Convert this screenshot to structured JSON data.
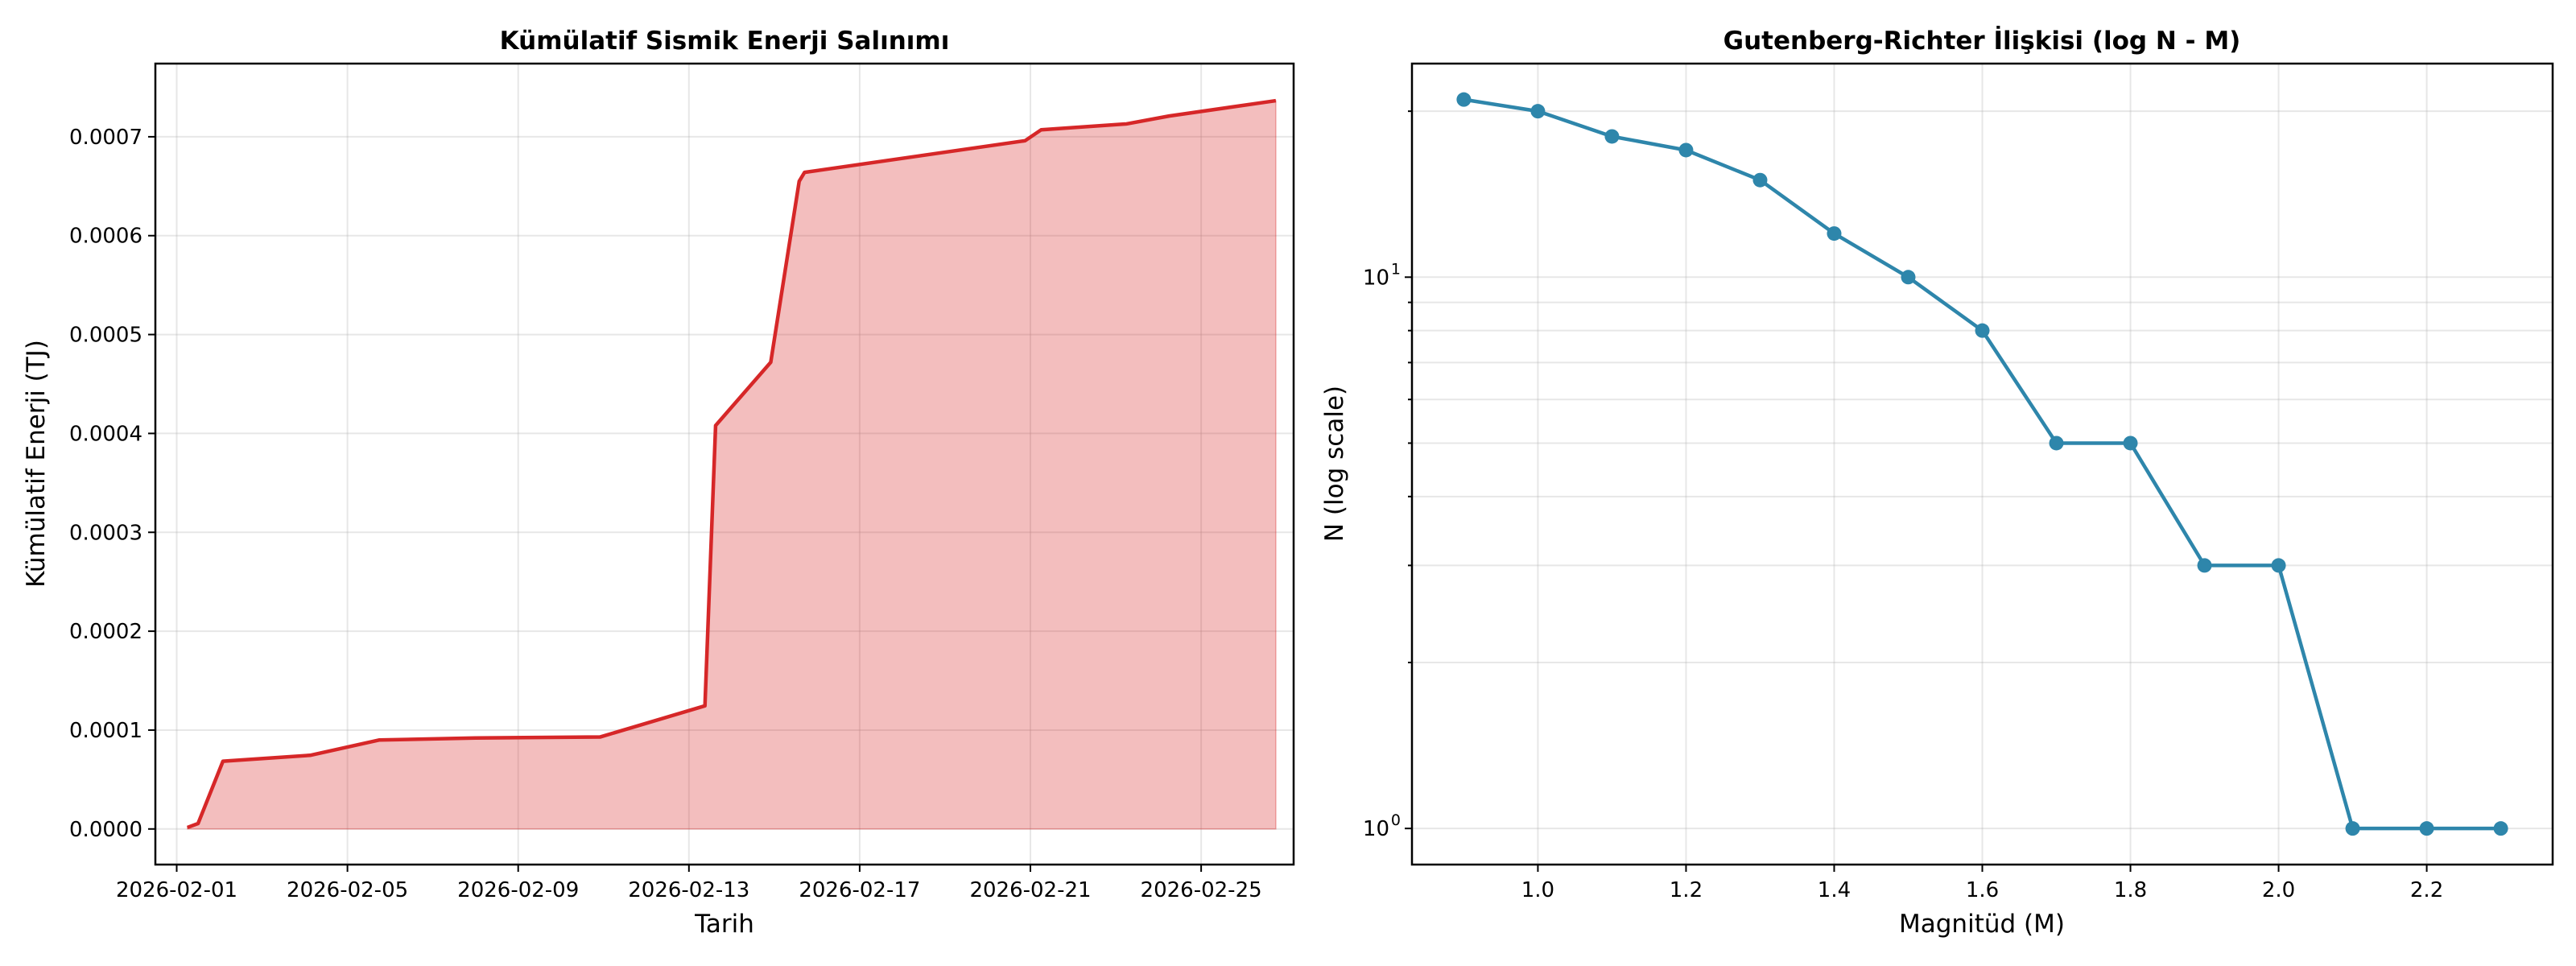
{
  "colors": {
    "energy_line": "#d62728",
    "energy_fill": "#d62728",
    "gr_line": "#2e86ab"
  },
  "chart_data": [
    {
      "type": "area",
      "title": "Kümülatif Sismik Enerji Salınımı",
      "xlabel": "Tarih",
      "ylabel": "Kümülatif Enerji (TJ)",
      "x_tick_labels": [
        "2026-02-01",
        "2026-02-05",
        "2026-02-09",
        "2026-02-13",
        "2026-02-17",
        "2026-02-21",
        "2026-02-25"
      ],
      "y_tick_labels": [
        "0.0000",
        "0.0001",
        "0.0002",
        "0.0003",
        "0.0004",
        "0.0005",
        "0.0006",
        "0.0007"
      ],
      "xlim": [
        "2026-01-31T12:00",
        "2026-02-27T04:00"
      ],
      "ylim": [
        -3.6e-05,
        0.000774
      ],
      "grid": true,
      "x": [
        "2026-02-01T06:00",
        "2026-02-01T12:00",
        "2026-02-02T02:00",
        "2026-02-04T03:00",
        "2026-02-05T18:00",
        "2026-02-08T00:00",
        "2026-02-10T22:00",
        "2026-02-13T09:00",
        "2026-02-13T15:00",
        "2026-02-14T22:00",
        "2026-02-15T14:00",
        "2026-02-15T17:00",
        "2026-02-20T21:00",
        "2026-02-21T06:00",
        "2026-02-23T06:00",
        "2026-02-24T06:00",
        "2026-02-26T18:00"
      ],
      "y": [
        1.5e-06,
        5.5e-06,
        6.85e-05,
        7.45e-05,
        9e-05,
        9.2e-05,
        9.3e-05,
        0.0001245,
        0.000408,
        0.000472,
        0.000655,
        0.000664,
        0.000696,
        0.000707,
        0.000713,
        0.000721,
        0.0007365
      ]
    },
    {
      "type": "line",
      "title": "Gutenberg-Richter İlişkisi (log N - M)",
      "xlabel": "Magnitüd (M)",
      "ylabel": "N (log scale)",
      "x_tick_labels": [
        "1.0",
        "1.2",
        "1.4",
        "1.6",
        "1.8",
        "2.0",
        "2.2"
      ],
      "y_tick_labels": [
        {
          "base": "10",
          "exp": "0"
        },
        {
          "base": "10",
          "exp": "1"
        }
      ],
      "y_scale": "log",
      "xlim": [
        0.83,
        2.37
      ],
      "ylim": [
        0.86,
        24.4
      ],
      "grid": true,
      "x": [
        0.9,
        1.0,
        1.1,
        1.2,
        1.3,
        1.4,
        1.5,
        1.6,
        1.7,
        1.8,
        1.9,
        2.0,
        2.1,
        2.2,
        2.3
      ],
      "y": [
        21,
        20,
        18,
        17,
        15,
        12,
        10,
        8,
        5,
        5,
        3,
        3,
        1,
        1,
        1
      ]
    }
  ]
}
